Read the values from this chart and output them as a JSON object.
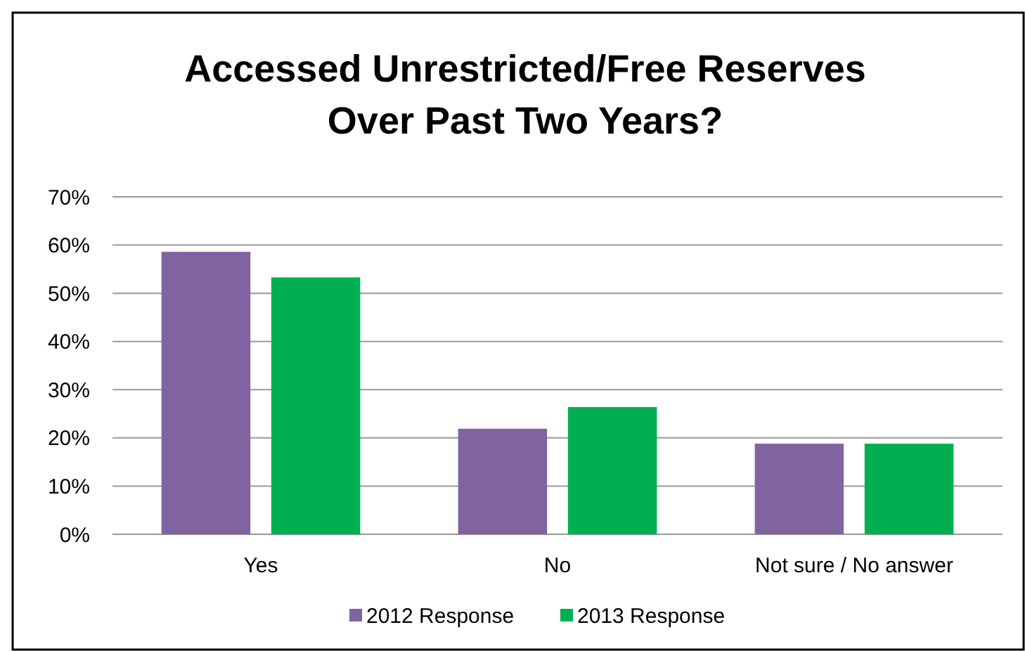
{
  "chart_data": {
    "type": "bar",
    "title": "Accessed Unrestricted/Free Reserves\nOver Past Two Years?",
    "categories": [
      "Yes",
      "No",
      "Not sure / No answer"
    ],
    "series": [
      {
        "name": "2012 Response",
        "color": "#8064a2",
        "values": [
          58.6,
          21.9,
          18.8
        ]
      },
      {
        "name": "2013 Response",
        "color": "#00b050",
        "values": [
          53.3,
          26.4,
          18.8
        ]
      }
    ],
    "ylim": [
      0,
      70
    ],
    "yticks": [
      {
        "value": 0,
        "label": "0%"
      },
      {
        "value": 10,
        "label": "10%"
      },
      {
        "value": 20,
        "label": "20%"
      },
      {
        "value": 30,
        "label": "30%"
      },
      {
        "value": 40,
        "label": "40%"
      },
      {
        "value": 50,
        "label": "50%"
      },
      {
        "value": 60,
        "label": "60%"
      },
      {
        "value": 70,
        "label": "70%"
      }
    ],
    "grid": "y",
    "legend": "bottom"
  }
}
